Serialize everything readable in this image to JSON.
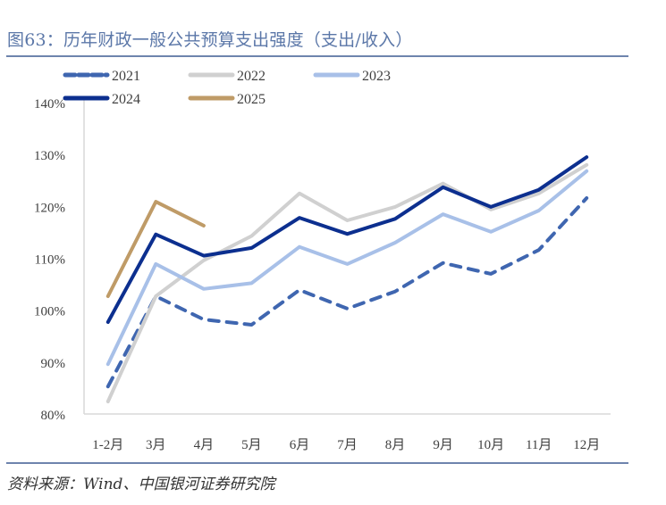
{
  "header": {
    "title": "图63：历年财政一般公共预算支出强度（支出/收入）"
  },
  "footer": {
    "source": "资料来源：Wind、中国银河证券研究院"
  },
  "chart_data": {
    "type": "line",
    "title": "图63：历年财政一般公共预算支出强度（支出/收入）",
    "xlabel": "",
    "ylabel": "",
    "categories": [
      "1-2月",
      "3月",
      "4月",
      "5月",
      "6月",
      "7月",
      "8月",
      "9月",
      "10月",
      "11月",
      "12月"
    ],
    "ylim": [
      80,
      140
    ],
    "yticks": [
      80,
      90,
      100,
      110,
      120,
      130,
      140
    ],
    "ytick_format": "{v}%",
    "grid": false,
    "legend_position": "top",
    "series": [
      {
        "name": "2021",
        "color": "#3f66b0",
        "dash": true,
        "values": [
          85.3,
          102.7,
          98.2,
          97.2,
          103.9,
          100.3,
          103.6,
          109.1,
          107.0,
          111.6,
          121.6
        ]
      },
      {
        "name": "2022",
        "color": "#d0d0d0",
        "dash": false,
        "values": [
          82.4,
          102.7,
          109.6,
          114.3,
          122.5,
          117.3,
          119.9,
          124.4,
          119.4,
          122.5,
          128.0
        ]
      },
      {
        "name": "2023",
        "color": "#a8c0e8",
        "dash": false,
        "values": [
          89.6,
          108.9,
          104.1,
          105.2,
          112.2,
          108.9,
          113.0,
          118.5,
          115.1,
          119.2,
          126.8
        ]
      },
      {
        "name": "2024",
        "color": "#0c2f8f",
        "dash": false,
        "values": [
          97.7,
          114.6,
          110.5,
          112.0,
          117.8,
          114.7,
          117.6,
          123.7,
          119.9,
          123.2,
          129.5
        ]
      },
      {
        "name": "2025",
        "color": "#bf9b67",
        "dash": false,
        "values": [
          102.7,
          120.9,
          116.3
        ]
      }
    ]
  }
}
